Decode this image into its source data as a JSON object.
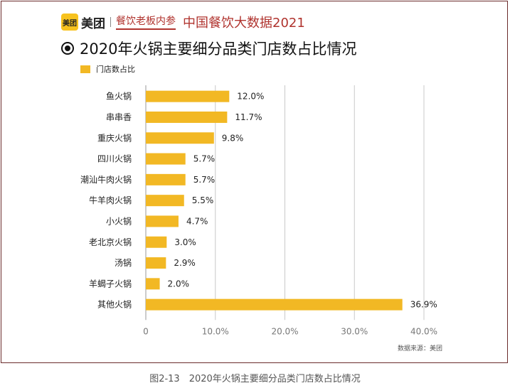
{
  "header": {
    "logo_mark": "美团",
    "logo_text": "美团",
    "sub_brand": "餐饮老板内参",
    "report_title": "中国餐饮大数据2021"
  },
  "chart_data": {
    "type": "bar",
    "orientation": "horizontal",
    "title": "2020年火锅主要细分品类门店数占比情况",
    "categories": [
      "鱼火锅",
      "串串香",
      "重庆火锅",
      "四川火锅",
      "潮汕牛肉火锅",
      "牛羊肉火锅",
      "小火锅",
      "老北京火锅",
      "汤锅",
      "羊蝎子火锅",
      "其他火锅"
    ],
    "series": [
      {
        "name": "门店数占比",
        "values": [
          12.0,
          11.7,
          9.8,
          5.7,
          5.7,
          5.5,
          4.7,
          3.0,
          2.9,
          2.0,
          36.9
        ],
        "labels": [
          "12.0%",
          "11.7%",
          "9.8%",
          "5.7%",
          "5.7%",
          "5.5%",
          "4.7%",
          "3.0%",
          "2.9%",
          "2.0%",
          "36.9%"
        ]
      }
    ],
    "x_ticks": [
      "0",
      "10.0%",
      "20.0%",
      "30.0%",
      "40.0%"
    ],
    "xlim": [
      0,
      40
    ],
    "grid": true,
    "legend_position": "top-left",
    "bar_color": "#f2b824"
  },
  "source": "数据来源：美团",
  "caption": "图2-13　2020年火锅主要细分品类门店数占比情况"
}
